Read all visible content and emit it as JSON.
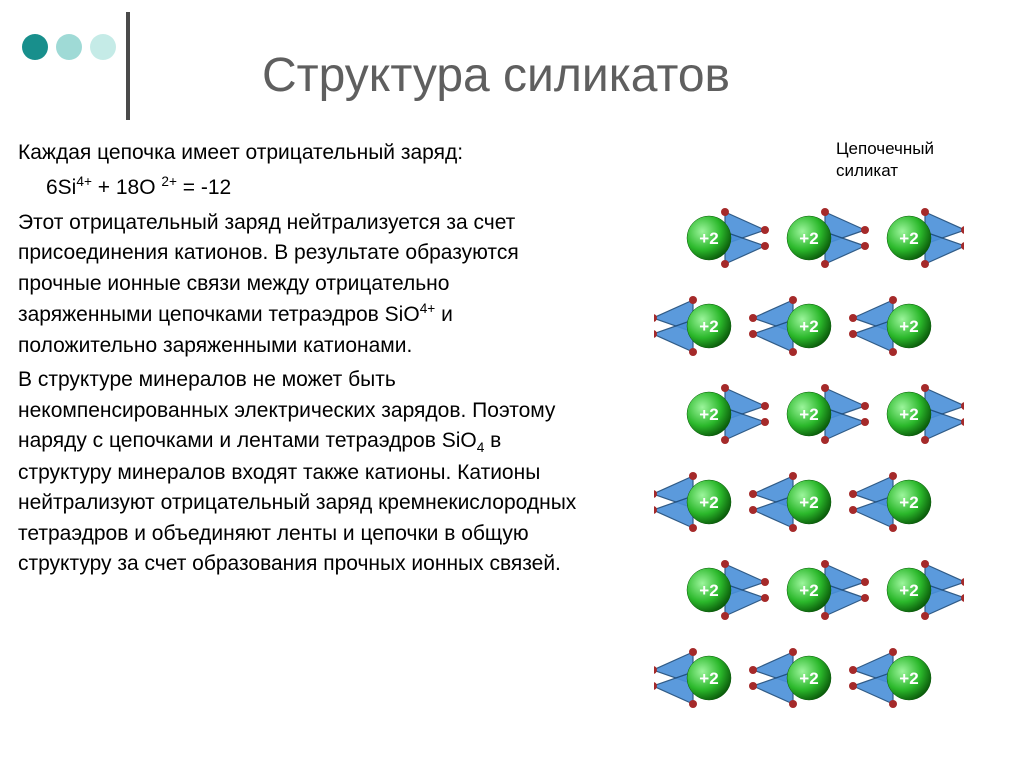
{
  "dots": {
    "colors": [
      "#188f8c",
      "#9fdad6",
      "#c5ebe7"
    ]
  },
  "title": "Структура силикатов",
  "content": {
    "p1": "Каждая цепочка имеет отрицательный заряд:",
    "formula_parts": {
      "a": "6Si",
      "a_sup": "4+",
      "b": " + 18O ",
      "b_sup": "2+",
      "c": " = -12"
    },
    "p2_parts": {
      "pre": "Этот отрицательный заряд нейтрализуется за счет присоединения катионов. В результате образуются прочные ионные связи между отрицательно заряженными цепочками тетраэдров SiO",
      "sup": "4+",
      "post": " и положительно заряженными катионами."
    },
    "p3_parts": {
      "pre": "В структуре минералов не может быть некомпенсированных электрических зарядов. Поэтому наряду с цепочками и лентами тетраэдров SiO",
      "sub": "4",
      "post": " в структуру минералов входят также катионы. Катионы нейтрализуют отрицательный заряд кремнекислородных тетраэдров и объединяют ленты и цепочки в общую структуру за счет образования прочных ионных связей."
    }
  },
  "diagram": {
    "label_line1": "Цепочечный",
    "label_line2": "силикат",
    "type": "infographic",
    "background": "#ffffff",
    "chain_count": 3,
    "chain_x": [
      55,
      155,
      255
    ],
    "chain_y_start": 20,
    "chain_y_step": 88,
    "nodes_per_chain": 6,
    "cation_label": "+2",
    "cation_fill": "#2bb82b",
    "cation_text_color": "#ffffff",
    "cation_radius": 22,
    "triangle_fill": "#4a90d9",
    "triangle_stroke": "#1a4a7a",
    "triangle_size": 40,
    "apex_dot_color": "#a52a2a",
    "apex_dot_radius": 4
  }
}
